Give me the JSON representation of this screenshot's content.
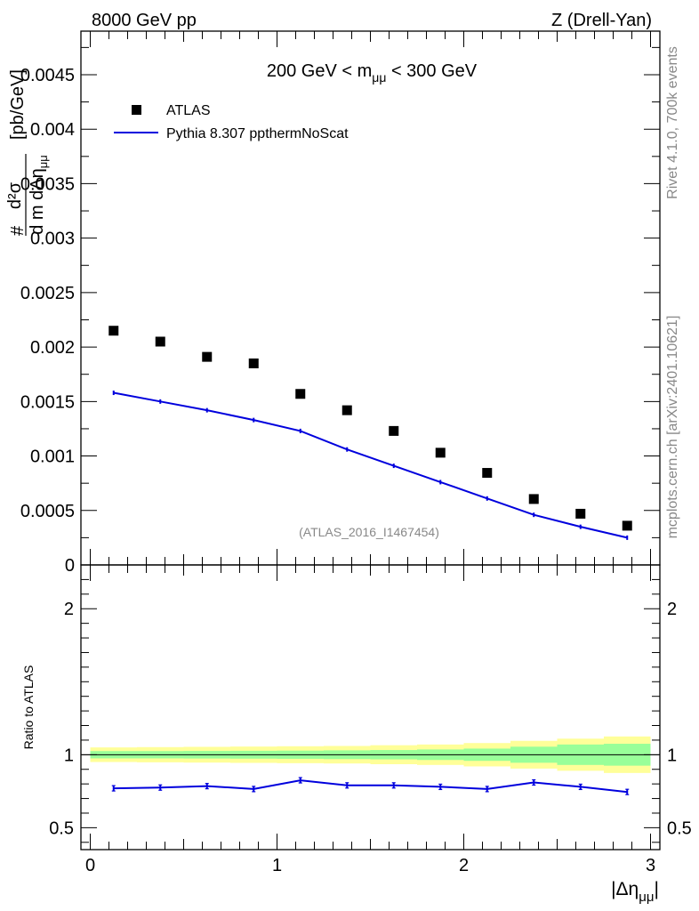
{
  "header": {
    "left": "8000 GeV pp",
    "right": "Z (Drell-Yan)"
  },
  "side_labels": {
    "rivet": "Rivet 4.1.0,  700k events",
    "mcplots": "mcplots.cern.ch [arXiv:2401.10621]"
  },
  "colors": {
    "data": "#000000",
    "mc": "#0000dd",
    "band_inner": "#99ff99",
    "band_outer": "#ffff99"
  },
  "chart_data": [
    {
      "type": "scatter",
      "title": "200 GeV < m_μμ < 300 GeV",
      "title_parts": {
        "before": "200 GeV < m",
        "sub": "μμ",
        "after": " < 300 GeV"
      },
      "ylabel": "# d²σ / d m_μμ dΔη_μμ [pb/GeV]",
      "ylabel_parts": {
        "hash": "#",
        "num": "d²σ",
        "den": "d m  dΔη",
        "den_sub": "μμ",
        "units": "[pb/GeV]"
      },
      "xlim": [
        -0.05,
        3.05
      ],
      "ylim": [
        0,
        0.0049
      ],
      "yticks": [
        0,
        0.0005,
        0.001,
        0.0015,
        0.002,
        0.0025,
        0.003,
        0.0035,
        0.004,
        0.0045
      ],
      "ytick_labels": [
        "0",
        "0.0005",
        "0.001",
        "0.0015",
        "0.002",
        "0.0025",
        "0.003",
        "0.0035",
        "0.004",
        "0.0045"
      ],
      "watermark": "(ATLAS_2016_I1467454)",
      "legend": {
        "position": "top-left",
        "entries": [
          "ATLAS",
          "Pythia 8.307 ppthermNoScat"
        ]
      },
      "x": [
        0.125,
        0.375,
        0.625,
        0.875,
        1.125,
        1.375,
        1.625,
        1.875,
        2.125,
        2.375,
        2.625,
        2.875
      ],
      "series": [
        {
          "name": "ATLAS",
          "style": "markers",
          "values": [
            0.00215,
            0.00205,
            0.00191,
            0.00185,
            0.00157,
            0.00142,
            0.00123,
            0.00103,
            0.000845,
            0.000605,
            0.00047,
            0.00036
          ]
        },
        {
          "name": "Pythia 8.307 ppthermNoScat",
          "style": "line",
          "values": [
            0.00158,
            0.0015,
            0.00142,
            0.00133,
            0.00123,
            0.00106,
            0.00091,
            0.00076,
            0.00061,
            0.00046,
            0.00035,
            0.00025
          ]
        }
      ]
    },
    {
      "type": "line",
      "ylabel": "Ratio to ATLAS",
      "xlabel": "|Δη_μμ|",
      "xlabel_parts": {
        "before": "|Δη",
        "sub": "μμ",
        "after": "|"
      },
      "xlim": [
        -0.05,
        3.05
      ],
      "ylim": [
        0.35,
        2.3
      ],
      "xticks": [
        0,
        1,
        2,
        3
      ],
      "xtick_labels": [
        "0",
        "1",
        "2",
        "3"
      ],
      "yticks": [
        0.5,
        1,
        2
      ],
      "ytick_labels": [
        "0.5",
        "1",
        "2"
      ],
      "bins": [
        0,
        0.25,
        0.5,
        0.75,
        1.0,
        1.25,
        1.5,
        1.75,
        2.0,
        2.25,
        2.5,
        2.75,
        3.0
      ],
      "band_inner_halfwidth": [
        0.025,
        0.025,
        0.026,
        0.027,
        0.028,
        0.03,
        0.032,
        0.036,
        0.042,
        0.055,
        0.07,
        0.075
      ],
      "band_outer_halfwidth": [
        0.05,
        0.052,
        0.054,
        0.056,
        0.058,
        0.06,
        0.065,
        0.07,
        0.08,
        0.095,
        0.11,
        0.125
      ],
      "x": [
        0.125,
        0.375,
        0.625,
        0.875,
        1.125,
        1.375,
        1.625,
        1.875,
        2.125,
        2.375,
        2.625,
        2.875
      ],
      "series": [
        {
          "name": "Pythia 8.307 ppthermNoScat / ATLAS",
          "values": [
            0.77,
            0.775,
            0.785,
            0.765,
            0.825,
            0.79,
            0.79,
            0.78,
            0.765,
            0.81,
            0.78,
            0.745
          ]
        }
      ]
    }
  ]
}
